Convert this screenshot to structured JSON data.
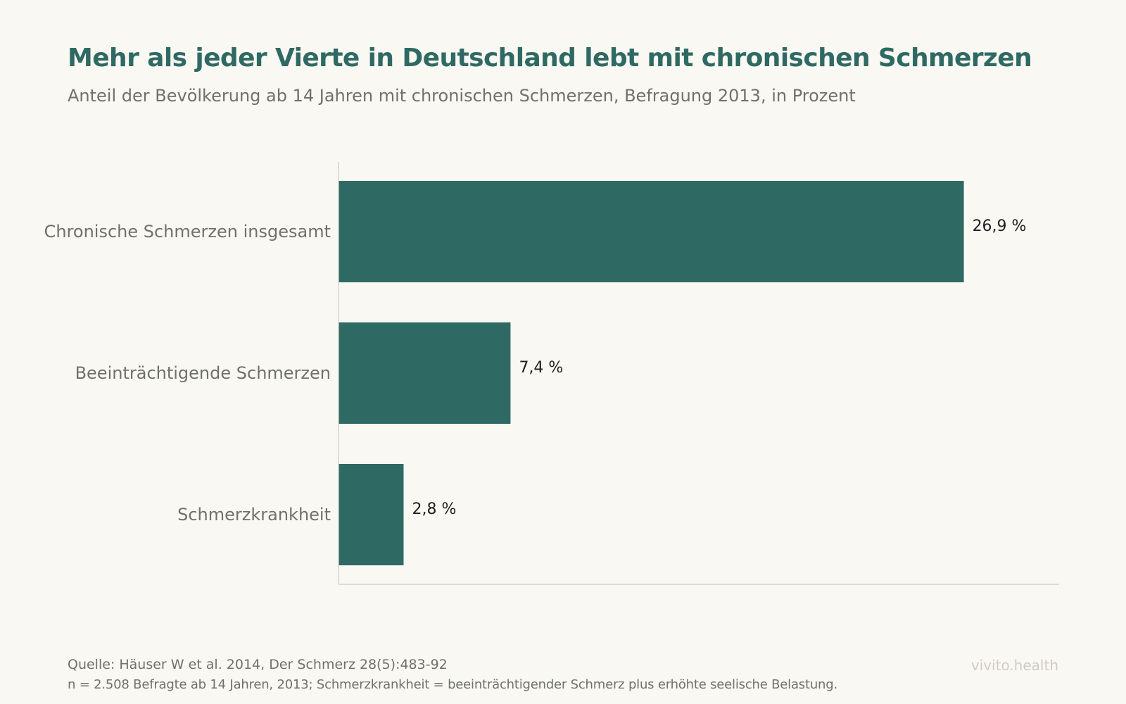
{
  "chart_data": {
    "type": "bar",
    "orientation": "horizontal",
    "title": "Mehr als jeder Vierte in Deutschland lebt mit chronischen Schmerzen",
    "subtitle": "Anteil der Bevölkerung ab 14 Jahren mit chronischen Schmerzen, Befragung 2013, in Prozent",
    "categories": [
      "Chronische Schmerzen insgesamt",
      "Beeinträchtigende Schmerzen",
      "Schmerzkrankheit"
    ],
    "values": [
      26.9,
      7.4,
      2.8
    ],
    "value_labels": [
      "26,9 %",
      "7,4 %",
      "2,8 %"
    ],
    "xlim": [
      0,
      31
    ],
    "xlabel": "",
    "ylabel": "",
    "grid": false,
    "bar_color": "#2e6a63"
  },
  "footer": {
    "source": "Quelle: Häuser W et al. 2014, Der Schmerz 28(5):483-92",
    "note": "n = 2.508 Befragte ab 14 Jahren, 2013; Schmerzkrankheit = beeinträchtigender Schmerz plus erhöhte seelische Belastung.",
    "brand": "vivito.health"
  }
}
